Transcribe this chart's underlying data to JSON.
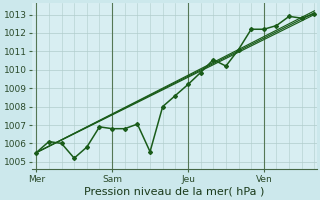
{
  "background_color": "#cce8ec",
  "plot_bg": "#d8eef2",
  "grid_color": "#b0cccc",
  "line_color": "#1a5c1a",
  "title": "Pression niveau de la mer( hPa )",
  "ylabel_ticks": [
    1005,
    1006,
    1007,
    1008,
    1009,
    1010,
    1011,
    1012,
    1013
  ],
  "ylim": [
    1004.6,
    1013.6
  ],
  "day_labels": [
    "Mer",
    "Sam",
    "Jeu",
    "Ven"
  ],
  "day_positions": [
    0,
    36,
    72,
    108
  ],
  "xlim": [
    -2,
    133
  ],
  "line_main": {
    "x": [
      0,
      6,
      12,
      18,
      24,
      30,
      36,
      42,
      48,
      54,
      60,
      66,
      72,
      78,
      84,
      90,
      96,
      102,
      108,
      114,
      120,
      126,
      132
    ],
    "y": [
      1005.5,
      1006.1,
      1006.0,
      1005.2,
      1005.8,
      1006.9,
      1006.8,
      1006.8,
      1007.05,
      1005.55,
      1008.0,
      1008.6,
      1009.2,
      1009.85,
      1010.55,
      1010.2,
      1011.1,
      1012.2,
      1012.2,
      1012.4,
      1012.9,
      1012.8,
      1013.05
    ],
    "marker": "D",
    "markersize": 2.0,
    "linewidth": 1.1
  },
  "line_trend1": {
    "x": [
      0,
      132
    ],
    "y": [
      1005.5,
      1013.0
    ]
  },
  "line_trend2": {
    "x": [
      0,
      132
    ],
    "y": [
      1005.5,
      1013.1
    ]
  },
  "line_trend3": {
    "x": [
      0,
      132
    ],
    "y": [
      1005.5,
      1013.2
    ]
  },
  "vline_positions": [
    0,
    36,
    72,
    108
  ],
  "vline_color": "#557755",
  "vline_linewidth": 0.7,
  "tick_fontsize": 6.5,
  "xlabel_fontsize": 8.0
}
